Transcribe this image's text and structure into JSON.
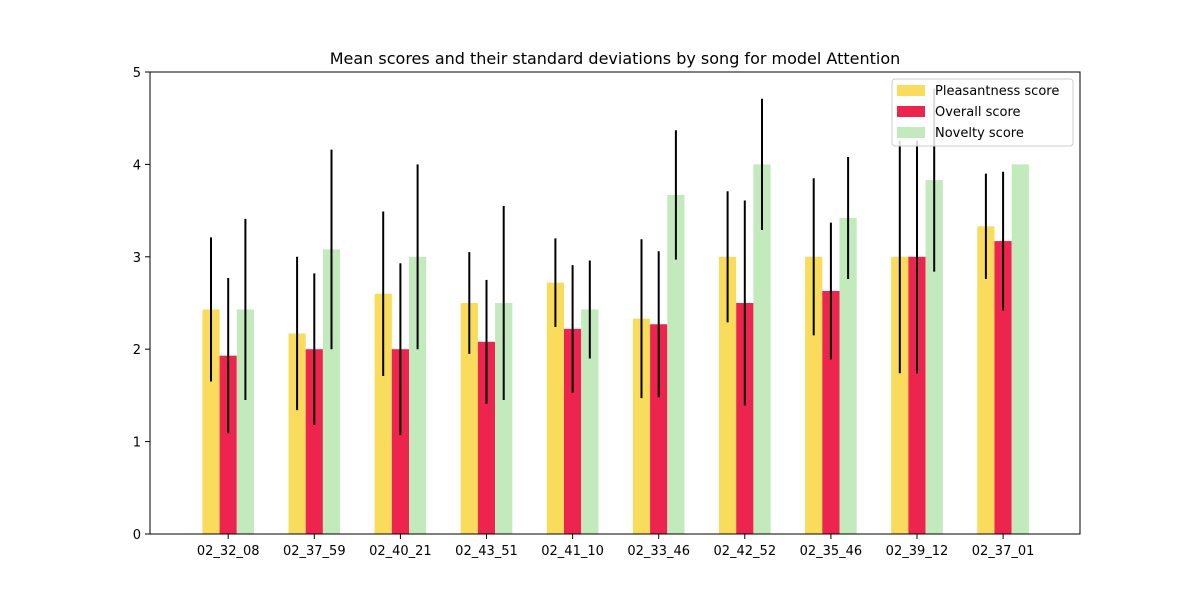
{
  "chart_data": {
    "type": "bar",
    "title": "Mean scores and their standard deviations by song for model Attention",
    "xlabel": "",
    "ylabel": "",
    "ylim": [
      0,
      5
    ],
    "yticks": [
      0,
      1,
      2,
      3,
      4,
      5
    ],
    "grid": false,
    "legend_position": "top-right",
    "categories": [
      "02_32_08",
      "02_37_59",
      "02_40_21",
      "02_43_51",
      "02_41_10",
      "02_33_46",
      "02_42_52",
      "02_35_46",
      "02_39_12",
      "02_37_01"
    ],
    "series": [
      {
        "name": "Pleasantness score",
        "color": "#f9dc5c",
        "values": [
          2.43,
          2.17,
          2.6,
          2.5,
          2.72,
          2.33,
          3.0,
          3.0,
          3.0,
          3.33
        ],
        "errors": [
          0.78,
          0.83,
          0.89,
          0.55,
          0.48,
          0.86,
          0.71,
          0.85,
          1.26,
          0.57
        ]
      },
      {
        "name": "Overall score",
        "color": "#ed254e",
        "values": [
          1.93,
          2.0,
          2.0,
          2.08,
          2.22,
          2.27,
          2.5,
          2.63,
          3.0,
          3.17
        ],
        "errors": [
          0.84,
          0.82,
          0.93,
          0.67,
          0.69,
          0.79,
          1.11,
          0.74,
          1.26,
          0.75
        ]
      },
      {
        "name": "Novelty score",
        "color": "#c2eabd",
        "values": [
          2.43,
          3.08,
          3.0,
          2.5,
          2.43,
          3.67,
          4.0,
          3.42,
          3.83,
          4.0
        ],
        "errors": [
          0.98,
          1.08,
          1.0,
          1.05,
          0.53,
          0.7,
          0.71,
          0.66,
          0.99,
          0.0
        ]
      }
    ]
  }
}
